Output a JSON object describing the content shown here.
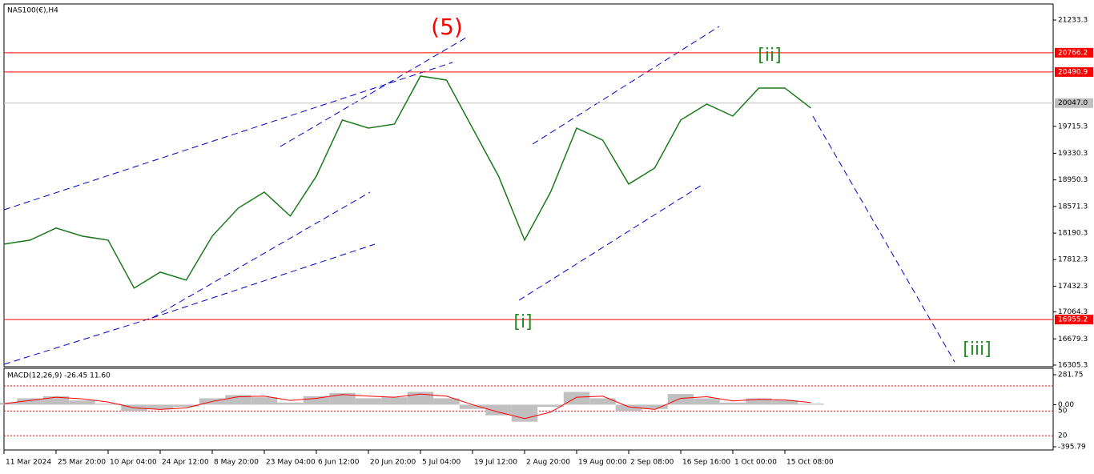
{
  "chart_data": [
    {
      "type": "line",
      "title": "NAS100(€),H4",
      "color": "#1a7a1a",
      "categories": [
        "11 Mar 2024",
        null,
        "25 Mar 20:00",
        null,
        "10 Apr 04:00",
        null,
        "24 Apr 12:00",
        null,
        "8 May 20:00",
        null,
        "23 May 04:00",
        null,
        "6 Jun 12:00",
        null,
        "20 Jun 20:00",
        null,
        "5 Jul 04:00",
        null,
        "19 Jul 12:00",
        null,
        "2 Aug 20:00",
        null,
        "19 Aug 00:00",
        null,
        "2 Sep 08:00",
        null,
        "16 Sep 16:00",
        null,
        "1 Oct 00:00",
        null,
        "15 Oct 08:00",
        null
      ],
      "values": [
        18033,
        18090,
        18262,
        18147,
        18090,
        17404,
        17633,
        17519,
        18147,
        18547,
        18776,
        18433,
        19004,
        19805,
        19690,
        19747,
        20433,
        20376,
        19690,
        19004,
        18090,
        18776,
        19690,
        19519,
        18890,
        19119,
        19805,
        20033,
        19861,
        20262,
        20262,
        19976
      ],
      "ylim": [
        16282,
        21462
      ],
      "yticks": [
        21233.3,
        19715.3,
        19330.3,
        18950.3,
        18571.3,
        18190.3,
        17812.3,
        17432.3,
        17064.3,
        16679.3,
        16305.3
      ],
      "hlines": [
        {
          "value": 20766.2,
          "color": "#ff0000"
        },
        {
          "value": 20490.9,
          "color": "#ff0000"
        },
        {
          "value": 20047,
          "label": "20047.0",
          "color": "#c0c0c0"
        },
        {
          "value": 16955.2,
          "color": "#ff0000"
        }
      ],
      "annotations": [
        {
          "text": "(5)",
          "color": "#ff0000"
        },
        {
          "text": "[ii]",
          "color": "#228b22"
        },
        {
          "text": "[i]",
          "color": "#228b22"
        },
        {
          "text": "[iii]",
          "color": "#228b22"
        }
      ]
    },
    {
      "type": "macd",
      "title": "MACD(12,26,9) -26.45 11.60",
      "series": [
        {
          "color": "#c0c0c0",
          "values": [
            20,
            60,
            80,
            40,
            10,
            -60,
            -40,
            -20,
            60,
            90,
            70,
            20,
            80,
            110,
            60,
            70,
            120,
            60,
            -40,
            -100,
            -160,
            -20,
            120,
            60,
            -60,
            -40,
            100,
            60,
            20,
            60,
            40,
            10
          ]
        },
        {
          "color": "#ff0000",
          "values": [
            10,
            40,
            70,
            55,
            25,
            -30,
            -45,
            -30,
            30,
            75,
            80,
            40,
            60,
            95,
            80,
            70,
            100,
            80,
            0,
            -70,
            -130,
            -70,
            70,
            80,
            -20,
            -45,
            60,
            75,
            35,
            50,
            45,
            20
          ]
        }
      ],
      "ylim": [
        -426,
        342
      ],
      "yticks": [
        281.75,
        {
          "value": 0,
          "label": "0.00"
        },
        -395.79
      ],
      "level_labels": [
        "50",
        "20"
      ],
      "levels": [
        176,
        -60,
        -292
      ]
    }
  ]
}
